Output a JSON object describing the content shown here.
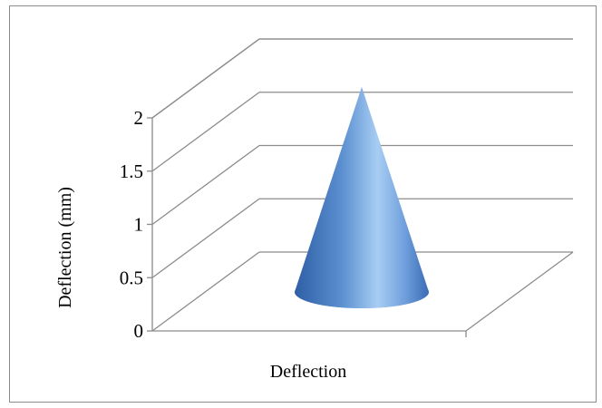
{
  "chart_data": {
    "type": "bar",
    "subtype": "3d-cone",
    "categories": [
      ""
    ],
    "series": [
      {
        "name": "Deflection",
        "values": [
          1.92
        ]
      }
    ],
    "xlabel": "Deflection",
    "ylabel": "Deflection (mm)",
    "ylim": [
      0,
      2
    ],
    "yticks": [
      "0",
      "0.5",
      "1",
      "1.5",
      "2"
    ],
    "grid": true,
    "legend": "none",
    "colors": {
      "cone_light": "#a7cdf3",
      "cone_mid": "#5b8fd0",
      "cone_dark": "#2f5fa6",
      "gridline": "#8c8c8c"
    }
  }
}
